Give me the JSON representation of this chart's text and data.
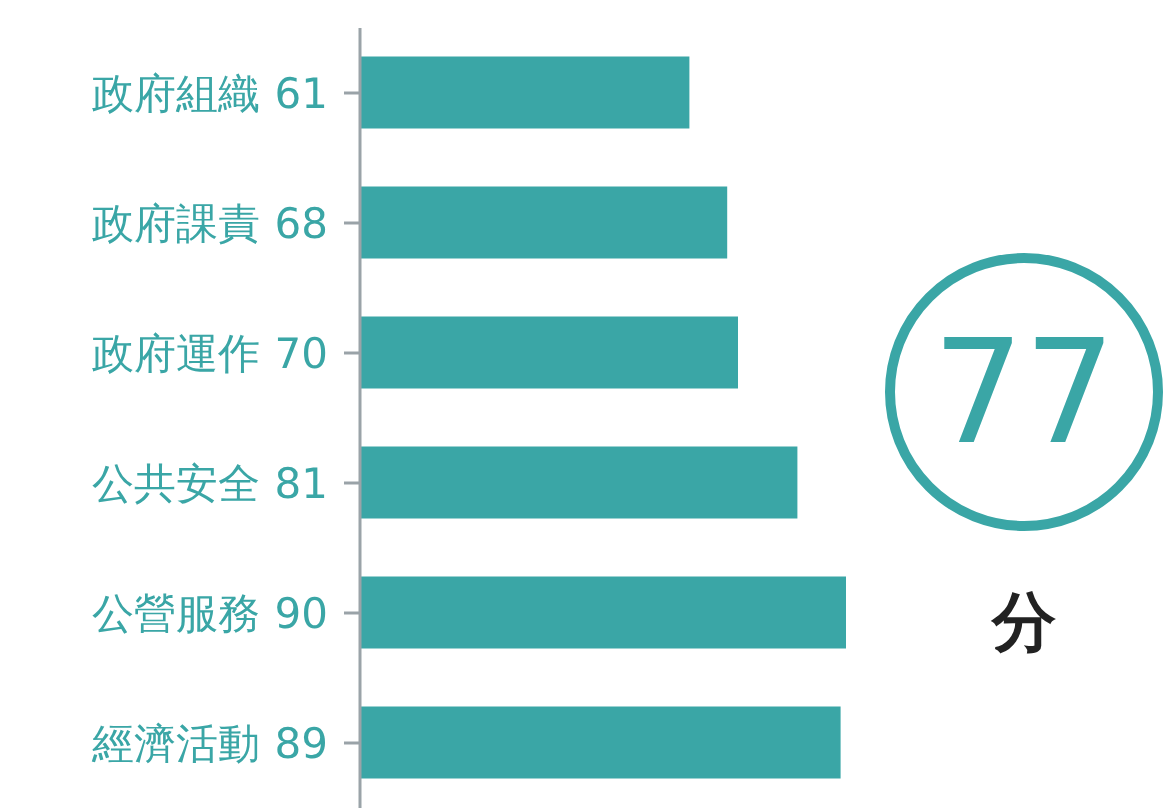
{
  "chart_data": {
    "type": "bar",
    "orientation": "horizontal",
    "categories": [
      "政府組織",
      "政府課責",
      "政府運作",
      "公共安全",
      "公營服務",
      "經濟活動"
    ],
    "values": [
      61,
      68,
      70,
      81,
      90,
      89
    ],
    "color": "#3aa6a6",
    "data_labels": true,
    "tick_labels": "y",
    "annotations": [
      "77",
      "分"
    ]
  }
}
